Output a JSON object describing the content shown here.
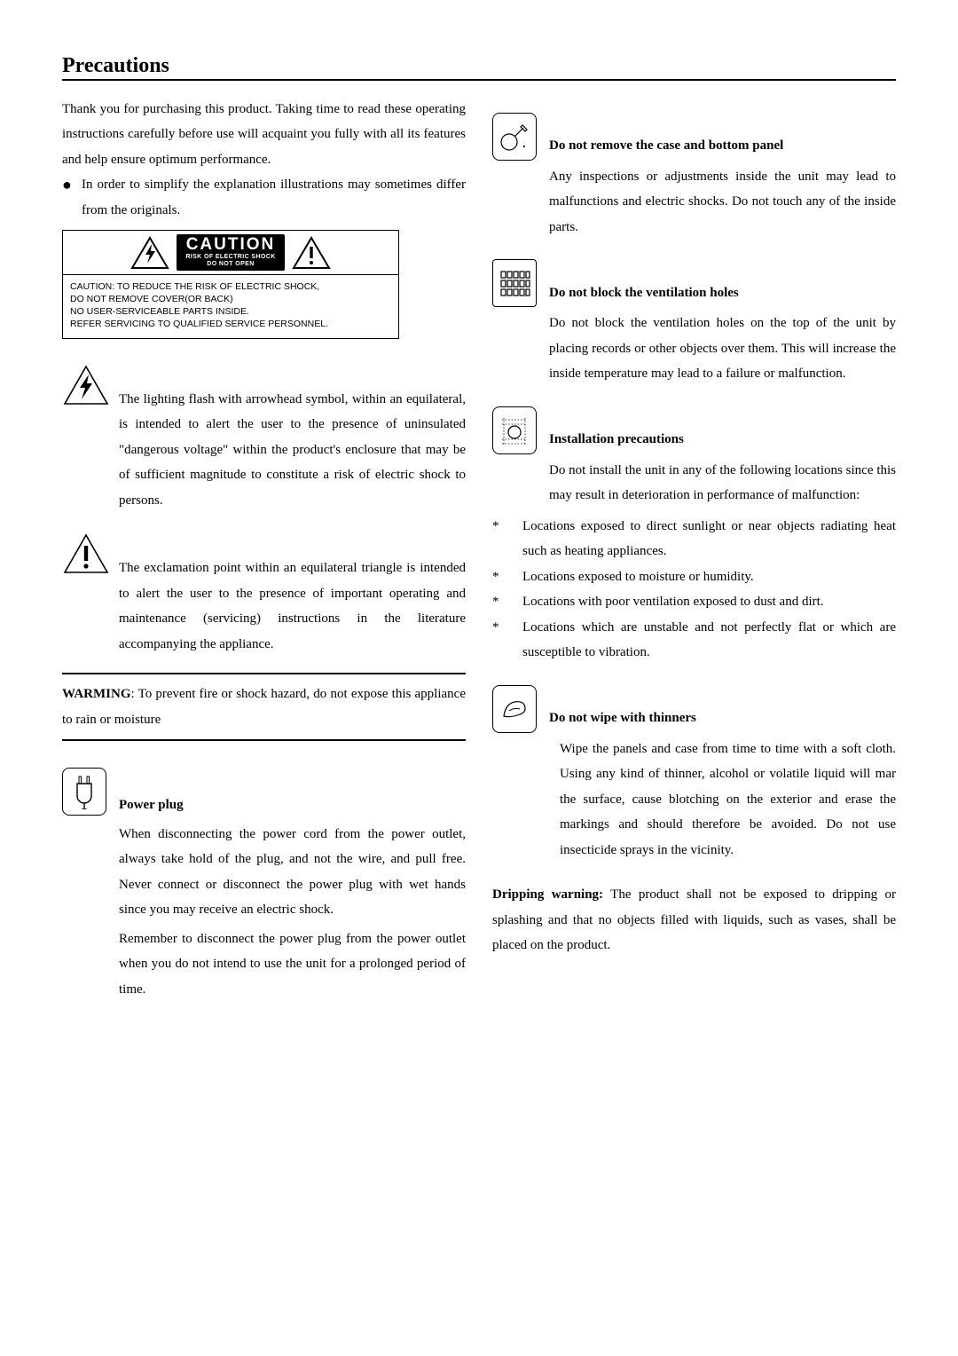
{
  "title": "Precautions",
  "intro": "Thank you for purchasing this product. Taking time to read these operating instructions carefully before use will acquaint you fully with all its features and help ensure optimum performance.",
  "bullet": "In order to simplify the explanation illustrations may sometimes differ from the originals.",
  "caution_label": {
    "big": "CAUTION",
    "line1": "RISK OF ELECTRIC SHOCK",
    "line2": "DO NOT OPEN",
    "bottom1": "CAUTION: TO REDUCE THE RISK OF ELECTRIC SHOCK,",
    "bottom2": "DO NOT REMOVE COVER(OR BACK)",
    "bottom3": "NO USER-SERVICEABLE PARTS INSIDE.",
    "bottom4": "REFER SERVICING TO QUALIFIED SERVICE PERSONNEL."
  },
  "lightning_text": "The lighting flash with arrowhead symbol, within an equilateral, is intended to alert the user to the presence of uninsulated \"dangerous voltage\" within the product's enclosure that may be of sufficient magnitude to constitute a risk of electric shock to persons.",
  "exclaim_text": "The exclamation point within an equilateral triangle is intended to alert the user to the presence of important operating and maintenance (servicing) instructions in the literature accompanying the appliance.",
  "warming_label": "WARMING",
  "warming_text": ": To prevent fire or shock hazard, do not expose this appliance to rain or moisture",
  "powerplug": {
    "title": "Power plug",
    "p1": "When disconnecting the power cord from the power outlet, always take hold of the plug, and not the wire, and pull free. Never connect or disconnect the power plug with wet hands since you may receive an electric shock.",
    "p2": "Remember to disconnect the power plug from the power outlet when you do not intend to use the unit for a prolonged period of time."
  },
  "case_panel": {
    "title": "Do not remove the case and bottom panel",
    "body": "Any inspections or adjustments inside the unit may lead to malfunctions and electric shocks. Do not touch any of the inside parts."
  },
  "ventilation": {
    "title": "Do not block the ventilation holes",
    "body": "Do not block the ventilation holes on the top of the unit by placing records or other objects over them. This will increase the inside temperature may lead to a failure or malfunction."
  },
  "installation": {
    "title": "Installation precautions",
    "body": "Do not install the unit in any of the following locations since this may result in deterioration in performance of malfunction:",
    "items": [
      "Locations exposed to direct sunlight or near objects radiating heat such as heating appliances.",
      "Locations exposed to moisture or humidity.",
      "Locations with poor ventilation exposed to dust and dirt.",
      "Locations which are unstable and not perfectly flat or which are susceptible to vibration."
    ]
  },
  "thinners": {
    "title": "Do not wipe with thinners",
    "body": "Wipe the panels and case from time to time with a soft cloth. Using any kind of thinner, alcohol or volatile liquid will mar the surface, cause blotching on the exterior and erase the markings and should therefore be avoided. Do not use insecticide sprays in the vicinity."
  },
  "dripping_label": "Dripping warning:",
  "dripping_text": " The product shall not be exposed to dripping or splashing and that no objects filled with liquids, such as vases, shall be placed on the product."
}
